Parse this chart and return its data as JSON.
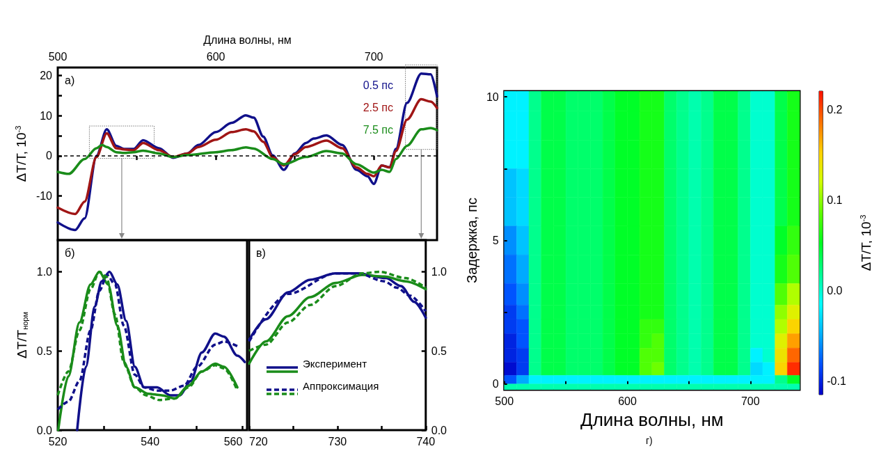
{
  "chart_data": [
    {
      "type": "line",
      "xlabel": "Длина волны, нм",
      "ylabel": "ΔT/T, 10$^{-3}$",
      "annotations": [
        "а)"
      ],
      "xlim": [
        500,
        740
      ],
      "xticks": [
        500,
        {
          "value": 550,
          "label": null
        },
        600,
        {
          "value": 650,
          "label": null
        },
        700
      ],
      "ylim": [
        -21,
        22
      ],
      "yticks": [
        -10,
        {
          "value": 5,
          "label": null
        },
        0,
        10,
        {
          "value": 15,
          "label": null
        },
        20
      ],
      "legend": "top right",
      "marker": "none",
      "line_style": "solid",
      "grid": false,
      "ref_lines": [
        {
          "axis": "y",
          "value": 0,
          "label": null,
          "color": "#000000",
          "line_style": "dashed"
        }
      ],
      "series": [
        {
          "name": "0.5 пс",
          "color": "#10108a",
          "x": [
            500,
            511,
            517,
            524.5,
            531,
            537,
            542,
            548,
            554,
            564,
            573,
            582,
            589,
            600,
            610,
            619,
            624,
            630,
            636,
            643,
            650,
            657,
            662,
            670,
            680,
            689,
            696,
            700,
            705,
            710,
            714,
            721,
            730,
            736,
            740
          ],
          "values": [
            -16.6,
            -18.5,
            -15.6,
            0,
            6.6,
            2.5,
            1.7,
            1.7,
            3.9,
            1.9,
            -0.5,
            0.6,
            2.7,
            5.9,
            8.2,
            10.1,
            9.5,
            4.8,
            0.1,
            -3.5,
            0.6,
            3.2,
            4.3,
            5.1,
            2.7,
            -3.5,
            -5.1,
            -7,
            -2.4,
            -2.9,
            1.7,
            13.2,
            20.5,
            20.3,
            14.8
          ]
        },
        {
          "name": "2.5 пс",
          "color": "#a01515",
          "x": [
            500,
            511,
            517,
            524.5,
            531,
            537,
            542,
            548,
            554,
            564,
            573,
            582,
            589,
            600,
            610,
            619,
            624,
            630,
            636,
            643,
            650,
            657,
            670,
            680,
            689,
            696,
            700,
            705,
            710,
            714,
            721,
            730,
            736,
            740
          ],
          "values": [
            -12.9,
            -14.5,
            -11.4,
            -0.3,
            5.6,
            1.9,
            1.6,
            1.4,
            3.2,
            1.4,
            -0.3,
            0.6,
            2.2,
            4.0,
            5.9,
            6.6,
            6.1,
            3.5,
            -0.3,
            -2.4,
            0.4,
            2.2,
            3.8,
            1.9,
            -2.9,
            -4.5,
            -5.1,
            -2.4,
            -2.9,
            1.2,
            9.0,
            14.1,
            13.5,
            11.9
          ]
        },
        {
          "name": "7.5 пс",
          "color": "#1a8c1a",
          "x": [
            500,
            507,
            517,
            524.5,
            528,
            531,
            537,
            542,
            548,
            554,
            564,
            573,
            582,
            600,
            610,
            619,
            624,
            636,
            643,
            657,
            670,
            680,
            689,
            700,
            705,
            710,
            714,
            721,
            730,
            736,
            740
          ],
          "values": [
            -4.0,
            -4.5,
            -0.8,
            1.9,
            2.7,
            2.2,
            0.9,
            0.7,
            0.9,
            1.3,
            0.6,
            -0.3,
            0.2,
            0.9,
            1.4,
            2.1,
            1.8,
            -0.8,
            -2.1,
            -0.3,
            1.2,
            0.6,
            -2.1,
            -4.2,
            -3.5,
            -4.0,
            -0.8,
            2.5,
            6.6,
            6.9,
            6.4
          ]
        }
      ]
    },
    {
      "type": "line",
      "ylabel": "ΔT/T$_{норм}$",
      "annotations": [
        "б)"
      ],
      "xlim": [
        520,
        561
      ],
      "xticks": [
        520,
        {
          "value": 530,
          "label": null
        },
        540,
        {
          "value": 550,
          "label": null
        },
        560
      ],
      "ylim": [
        0,
        1.2
      ],
      "yticks": [
        {
          "value": 0,
          "label": "0.0"
        },
        0.5,
        {
          "value": 1,
          "label": "1.0"
        }
      ],
      "marker": "none",
      "grid": false,
      "series": [
        {
          "color": "#10108a",
          "line_style": "solid",
          "x": [
            524.2,
            526.1,
            528.0,
            529.5,
            531.2,
            532.9,
            534.8,
            536.7,
            538.7,
            541.5,
            544.4,
            546.4,
            548.8,
            551.2,
            554.1,
            556.0,
            558.9,
            560.5
          ],
          "values": [
            0,
            0.4,
            0.78,
            0.94,
            1.0,
            0.92,
            0.69,
            0.4,
            0.27,
            0.27,
            0.22,
            0.22,
            0.31,
            0.49,
            0.61,
            0.59,
            0.47,
            0.43
          ]
        },
        {
          "color": "#1a8c1a",
          "line_style": "solid",
          "x": [
            520.1,
            522.3,
            524.7,
            527.1,
            529.0,
            530.9,
            532.9,
            534.8,
            536.7,
            539.6,
            542.5,
            545.4,
            548.3,
            551.2,
            554.1,
            556.0,
            558.9
          ],
          "values": [
            0,
            0.34,
            0.68,
            0.92,
            1.0,
            0.92,
            0.66,
            0.4,
            0.27,
            0.23,
            0.22,
            0.2,
            0.28,
            0.37,
            0.42,
            0.4,
            0.27
          ]
        },
        {
          "color": "#10108a",
          "line_style": "dashed",
          "x": [
            520,
            522.3,
            524.7,
            527.1,
            529.0,
            530.7,
            532.4,
            534.3,
            536.7,
            538.7,
            541.5,
            544.4,
            547.3,
            550.2,
            554.1,
            556.0,
            558.9
          ],
          "values": [
            0.13,
            0.18,
            0.31,
            0.63,
            0.88,
            0.98,
            0.92,
            0.66,
            0.35,
            0.27,
            0.25,
            0.25,
            0.28,
            0.4,
            0.54,
            0.56,
            0.53
          ]
        },
        {
          "color": "#1a8c1a",
          "line_style": "dashed",
          "x": [
            520,
            522.3,
            524.7,
            527.1,
            529.0,
            530.5,
            532.4,
            534.3,
            536.7,
            539.1,
            542.0,
            545.4,
            548.3,
            551.2,
            554.1,
            556.0,
            558.9
          ],
          "values": [
            0.22,
            0.37,
            0.63,
            0.89,
            1.0,
            0.97,
            0.73,
            0.43,
            0.27,
            0.22,
            0.19,
            0.2,
            0.27,
            0.37,
            0.41,
            0.39,
            0.25
          ]
        }
      ]
    },
    {
      "type": "line",
      "annotations": [
        "в)"
      ],
      "xlim": [
        720,
        740
      ],
      "xticks": [
        720,
        {
          "value": 725,
          "label": null
        },
        730,
        {
          "value": 735,
          "label": null
        },
        740
      ],
      "ylim": [
        0,
        1.2
      ],
      "yticks": [
        {
          "value": 0,
          "label": "0.0"
        },
        0.5,
        {
          "value": 1,
          "label": "1.0"
        }
      ],
      "marker": "none",
      "grid": false,
      "legend": "bottom left",
      "series": [
        {
          "name": "Эксперимент",
          "color": "#10108a",
          "line_style": "solid",
          "x": [
            720,
            721.9,
            724.4,
            726.9,
            729.8,
            732.3,
            735.5,
            737.2,
            738.7,
            740
          ],
          "values": [
            0.57,
            0.7,
            0.87,
            0.95,
            0.99,
            0.99,
            0.96,
            0.91,
            0.81,
            0.71
          ]
        },
        {
          "color": "#1a8c1a",
          "line_style": "solid",
          "x": [
            720,
            721.9,
            724.4,
            726.9,
            729.8,
            732.8,
            735.3,
            737.7,
            740
          ],
          "values": [
            0.42,
            0.56,
            0.72,
            0.84,
            0.93,
            0.98,
            0.97,
            0.94,
            0.89
          ]
        },
        {
          "name": "Аппроксимация",
          "color": "#10108a",
          "line_style": "dashed",
          "x": [
            720,
            724.4,
            729.8,
            732.3,
            735.3,
            736.7,
            738.2,
            740
          ],
          "values": [
            0.56,
            0.86,
            0.99,
            0.99,
            0.94,
            0.9,
            0.85,
            0.75
          ]
        },
        {
          "color": "#1a8c1a",
          "line_style": "dashed",
          "x": [
            720,
            721.9,
            724.4,
            726.9,
            729.8,
            732.8,
            734.8,
            737.7,
            740
          ],
          "values": [
            0.5,
            0.54,
            0.68,
            0.79,
            0.91,
            0.99,
            1.0,
            0.96,
            0.9
          ]
        }
      ]
    },
    {
      "type": "heatmap",
      "xlabel": "Длина волны, нм",
      "ylabel": "Задержка, пс",
      "clabel": "ΔT/T, 10$^{-3}$",
      "annotations": [
        "г)"
      ],
      "xlim": [
        500,
        740
      ],
      "xticks": [
        500,
        {
          "value": 550,
          "label": null
        },
        600,
        {
          "value": 650,
          "label": null
        },
        700
      ],
      "ylim": [
        -0.2,
        10.2
      ],
      "yticks": [
        0,
        {
          "value": 2.5,
          "label": null
        },
        5,
        {
          "value": 7.5,
          "label": null
        },
        10
      ],
      "clim": [
        -0.115,
        0.22
      ],
      "cticks": [
        -0.1,
        {
          "value": 0,
          "label": "0.0"
        },
        0.1,
        0.2
      ],
      "x": [
        505,
        515,
        525,
        535,
        545,
        555,
        565,
        575,
        585,
        595,
        605,
        615,
        625,
        635,
        645,
        655,
        665,
        675,
        685,
        695,
        705,
        715,
        725,
        735
      ],
      "y": [
        10,
        9,
        8,
        7,
        6,
        5,
        4,
        3,
        2.5,
        2,
        1.5,
        1,
        0.5,
        0.1,
        -0.1
      ],
      "cells": [
        [
          -0.02,
          -0.02,
          0.02,
          0.04,
          0.04,
          0.03,
          0.03,
          0.03,
          0.04,
          0.05,
          0.05,
          0.06,
          0.06,
          0.03,
          0.02,
          0.01,
          0.02,
          0.04,
          0.04,
          0.02,
          0.0,
          0.0,
          0.04,
          0.06
        ],
        [
          -0.02,
          -0.02,
          0.02,
          0.04,
          0.04,
          0.03,
          0.03,
          0.03,
          0.04,
          0.05,
          0.05,
          0.06,
          0.06,
          0.03,
          0.02,
          0.01,
          0.02,
          0.04,
          0.04,
          0.02,
          0.0,
          0.0,
          0.04,
          0.06
        ],
        [
          -0.02,
          -0.02,
          0.02,
          0.04,
          0.04,
          0.03,
          0.03,
          0.03,
          0.04,
          0.05,
          0.05,
          0.06,
          0.06,
          0.03,
          0.02,
          0.01,
          0.02,
          0.04,
          0.04,
          0.02,
          0.0,
          0.0,
          0.04,
          0.06
        ],
        [
          -0.04,
          -0.03,
          0.02,
          0.04,
          0.04,
          0.03,
          0.03,
          0.03,
          0.04,
          0.05,
          0.05,
          0.06,
          0.06,
          0.03,
          0.02,
          0.01,
          0.02,
          0.04,
          0.04,
          0.02,
          0.0,
          0.0,
          0.04,
          0.06
        ],
        [
          -0.04,
          -0.03,
          0.02,
          0.04,
          0.04,
          0.03,
          0.03,
          0.03,
          0.04,
          0.05,
          0.05,
          0.06,
          0.06,
          0.03,
          0.02,
          0.01,
          0.02,
          0.04,
          0.04,
          0.02,
          0.0,
          0.0,
          0.04,
          0.06
        ],
        [
          -0.06,
          -0.04,
          0.02,
          0.04,
          0.04,
          0.03,
          0.03,
          0.03,
          0.04,
          0.05,
          0.05,
          0.06,
          0.06,
          0.03,
          0.02,
          0.01,
          0.02,
          0.04,
          0.04,
          0.02,
          0.0,
          0.0,
          0.05,
          0.07
        ],
        [
          -0.07,
          -0.05,
          0.02,
          0.04,
          0.04,
          0.03,
          0.03,
          0.03,
          0.04,
          0.05,
          0.05,
          0.06,
          0.06,
          0.03,
          0.02,
          0.01,
          0.02,
          0.04,
          0.04,
          0.02,
          0.0,
          0.0,
          0.06,
          0.08
        ],
        [
          -0.08,
          -0.06,
          0.02,
          0.04,
          0.04,
          0.03,
          0.03,
          0.03,
          0.04,
          0.05,
          0.05,
          0.06,
          0.06,
          0.03,
          0.02,
          0.01,
          0.02,
          0.04,
          0.04,
          0.02,
          0.0,
          0.0,
          0.08,
          0.11
        ],
        [
          -0.09,
          -0.07,
          0.02,
          0.04,
          0.04,
          0.03,
          0.03,
          0.03,
          0.04,
          0.05,
          0.05,
          0.06,
          0.06,
          0.03,
          0.02,
          0.01,
          0.02,
          0.04,
          0.04,
          0.02,
          0.0,
          0.0,
          0.1,
          0.13
        ],
        [
          -0.09,
          -0.08,
          0.02,
          0.04,
          0.04,
          0.03,
          0.03,
          0.03,
          0.04,
          0.05,
          0.05,
          0.07,
          0.07,
          0.03,
          0.02,
          0.01,
          0.02,
          0.04,
          0.04,
          0.02,
          0.0,
          0.0,
          0.11,
          0.15
        ],
        [
          -0.1,
          -0.08,
          0.02,
          0.04,
          0.04,
          0.03,
          0.03,
          0.03,
          0.04,
          0.05,
          0.05,
          0.07,
          0.08,
          0.03,
          0.02,
          0.01,
          0.02,
          0.04,
          0.04,
          0.02,
          0.0,
          0.0,
          0.13,
          0.17
        ],
        [
          -0.1,
          -0.09,
          0.02,
          0.04,
          0.04,
          0.03,
          0.03,
          0.03,
          0.04,
          0.05,
          0.05,
          0.08,
          0.08,
          0.03,
          0.02,
          0.01,
          0.02,
          0.04,
          0.04,
          0.02,
          -0.02,
          0.0,
          0.14,
          0.19
        ],
        [
          -0.11,
          -0.09,
          0.02,
          0.04,
          0.04,
          0.03,
          0.03,
          0.03,
          0.04,
          0.05,
          0.05,
          0.08,
          0.09,
          0.03,
          0.02,
          0.01,
          0.02,
          0.04,
          0.04,
          0.02,
          -0.03,
          -0.02,
          0.15,
          0.21
        ],
        [
          -0.08,
          -0.05,
          -0.02,
          -0.02,
          -0.02,
          -0.02,
          -0.02,
          -0.02,
          -0.02,
          -0.02,
          -0.02,
          -0.02,
          -0.02,
          -0.02,
          -0.02,
          -0.02,
          -0.02,
          -0.02,
          -0.02,
          -0.02,
          -0.02,
          -0.02,
          0.02,
          0.05
        ],
        [
          0.01,
          0.01,
          0.01,
          0.01,
          0.01,
          0.01,
          0.01,
          0.01,
          0.01,
          0.01,
          0.01,
          0.01,
          0.01,
          0.01,
          0.01,
          0.01,
          0.01,
          0.01,
          0.01,
          0.01,
          0.01,
          0.01,
          0.01,
          0.01
        ]
      ]
    }
  ]
}
